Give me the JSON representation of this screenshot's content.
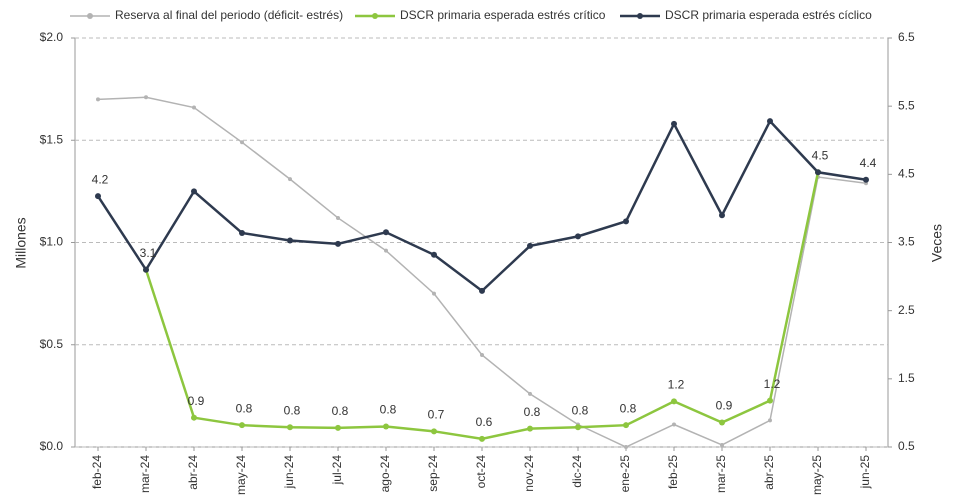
{
  "chart_data": {
    "type": "line",
    "categories": [
      "feb-24",
      "mar-24",
      "abr-24",
      "may-24",
      "jun-24",
      "jul-24",
      "ago-24",
      "sep-24",
      "oct-24",
      "nov-24",
      "dic-24",
      "ene-25",
      "feb-25",
      "mar-25",
      "abr-25",
      "may-25",
      "jun-25"
    ],
    "ylabel": "Millones",
    "y2label": "Veces",
    "ylim": [
      0,
      2.0
    ],
    "yticks": [
      {
        "value": 0,
        "label": "$0.0"
      },
      {
        "value": 0.5,
        "label": "$0.5"
      },
      {
        "value": 1.0,
        "label": "$1.0"
      },
      {
        "value": 1.5,
        "label": "$1.5"
      },
      {
        "value": 2.0,
        "label": "$2.0"
      }
    ],
    "y2lim": [
      0.5,
      6.5
    ],
    "y2ticks": [
      0.5,
      1.5,
      2.5,
      3.5,
      4.5,
      5.5,
      6.5
    ],
    "grid": true,
    "legend": "top",
    "series": [
      {
        "name": "Reserva al final del periodo (déficit- estrés)",
        "color": "#b3b3b3",
        "values": [
          1.7,
          1.71,
          1.66,
          1.49,
          1.31,
          1.12,
          0.96,
          0.75,
          0.45,
          0.26,
          0.11,
          0.0,
          0.11,
          0.01,
          0.13,
          1.32,
          1.29
        ]
      },
      {
        "name": "DSCR primaria esperada estrés crítico",
        "color": "#8dc63f",
        "axis": "y2",
        "values": [
          null,
          3.1,
          0.93,
          0.82,
          0.79,
          0.78,
          0.8,
          0.73,
          0.62,
          0.77,
          0.79,
          0.82,
          1.17,
          0.86,
          1.18,
          4.53,
          null
        ],
        "value_labels": [
          null,
          null,
          "0.9",
          "0.8",
          "0.8",
          "0.8",
          "0.8",
          "0.7",
          "0.6",
          "0.8",
          "0.8",
          "0.8",
          "1.2",
          "0.9",
          "1.2",
          null,
          null
        ]
      },
      {
        "name": "DSCR primaria esperada estrés cíclico",
        "color": "#2e3a4f",
        "axis": "y2",
        "values": [
          4.18,
          3.1,
          4.25,
          3.64,
          3.53,
          3.48,
          3.65,
          3.32,
          2.79,
          3.45,
          3.59,
          3.81,
          5.24,
          3.9,
          5.28,
          4.53,
          4.42
        ],
        "value_labels": [
          "4.2",
          "3.1",
          null,
          null,
          null,
          null,
          null,
          null,
          null,
          null,
          null,
          null,
          null,
          null,
          null,
          "4.5",
          "4.4"
        ]
      }
    ]
  }
}
